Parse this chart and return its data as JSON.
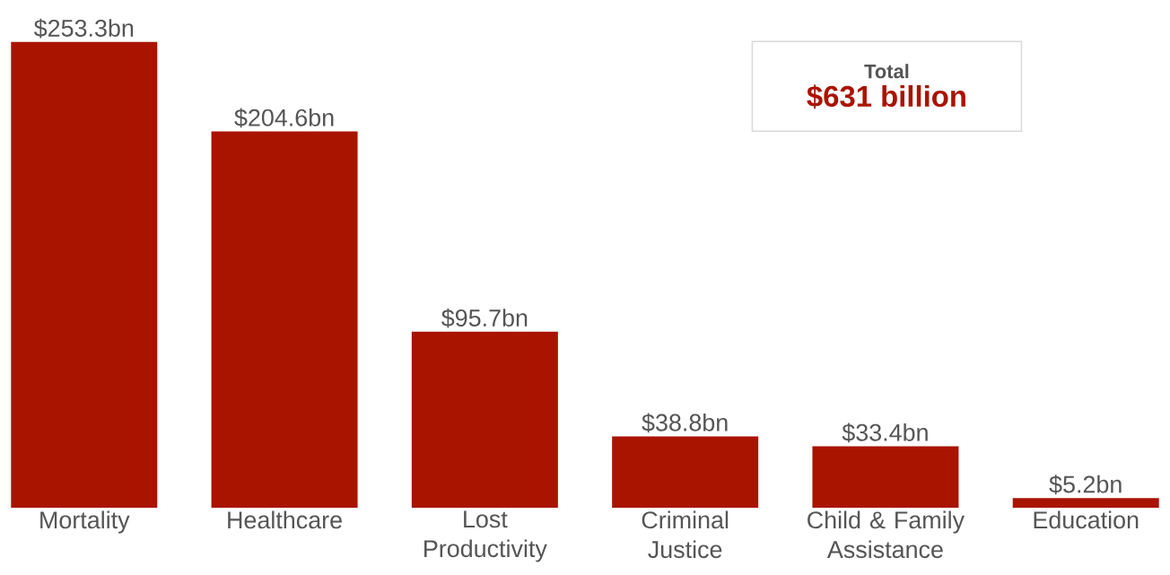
{
  "chart_data": {
    "type": "bar",
    "categories": [
      "Mortality",
      "Healthcare",
      "Lost Productivity",
      "Criminal Justice",
      "Child & Family Assistance",
      "Education"
    ],
    "values": [
      253.3,
      204.6,
      95.7,
      38.8,
      33.4,
      5.2
    ],
    "value_labels": [
      "$253.3bn",
      "$204.6bn",
      "$95.7bn",
      "$38.8bn",
      "$33.4bn",
      "$5.2bn"
    ],
    "color": "#a91401",
    "annotations": [
      "Total",
      "$631 billion"
    ]
  }
}
